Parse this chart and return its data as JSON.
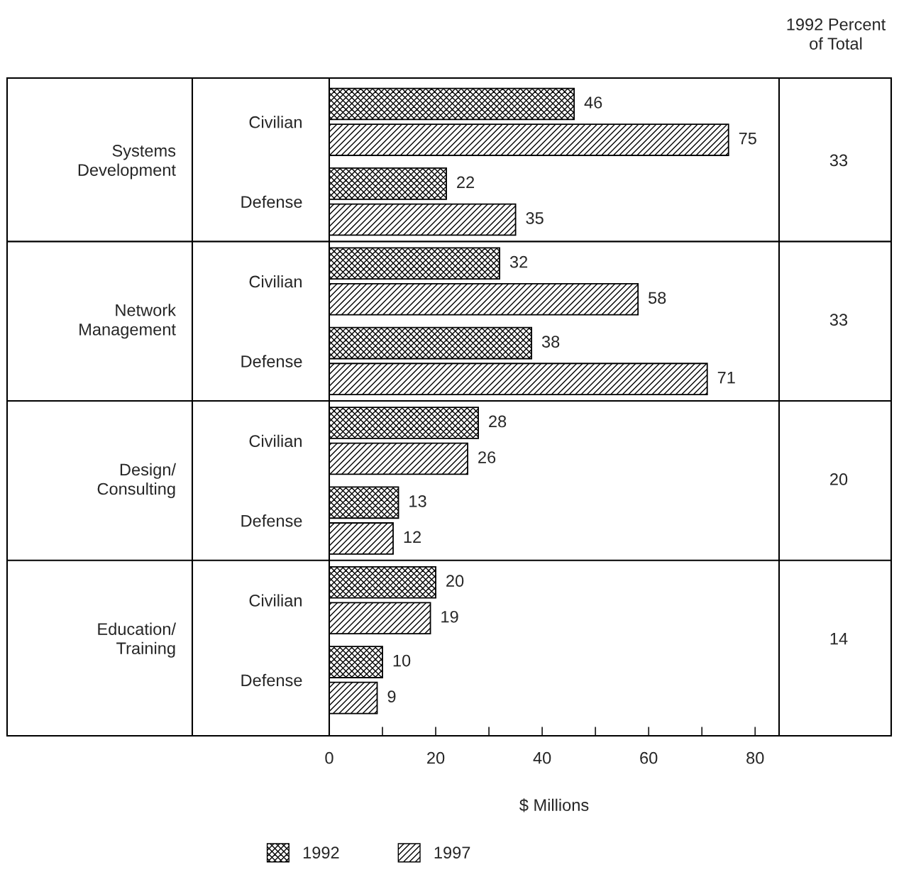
{
  "chart_data": {
    "type": "bar",
    "orientation": "horizontal",
    "categories": [
      "Civilian",
      "Defense",
      "Civilian",
      "Defense",
      "Civilian",
      "Defense",
      "Civilian",
      "Defense"
    ],
    "series": [
      {
        "name": "1992",
        "color": "#000000",
        "values": [
          46,
          22,
          32,
          38,
          28,
          13,
          20,
          10
        ]
      },
      {
        "name": "1997",
        "color": "#000000",
        "values": [
          75,
          35,
          58,
          71,
          26,
          12,
          19,
          9
        ]
      }
    ],
    "xlim": [
      0,
      84.5
    ],
    "xticks": [
      0,
      {
        "value": 10,
        "label": null
      },
      20,
      {
        "value": 30,
        "label": null
      },
      40,
      {
        "value": 50,
        "label": null
      },
      60,
      {
        "value": 70,
        "label": null
      },
      80
    ],
    "xlabel": "$ Millions",
    "data_labels": true,
    "grid": false,
    "legend": "bottom",
    "annotations": [
      "1992 Percent\nof Total",
      "Systems\nDevelopment",
      "33",
      "Network\nManagement",
      "33",
      "Design/\nConsulting",
      "20",
      "Education/\nTraining",
      "14"
    ]
  }
}
